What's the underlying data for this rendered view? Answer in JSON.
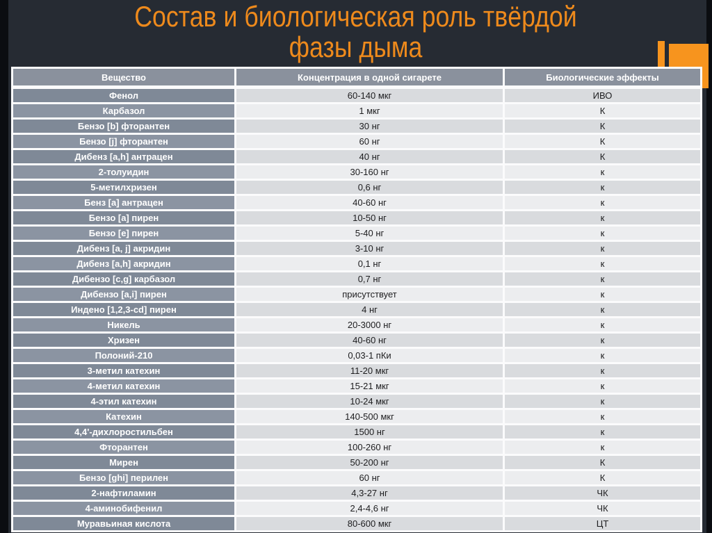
{
  "slide": {
    "title_line1": "Состав и биологическая роль твёрдой",
    "title_line2": "фазы дыма",
    "title_color": "#ee8a1c",
    "accent_color": "#f7941e",
    "background_color": "#262b33"
  },
  "table": {
    "headers": [
      "Вещество",
      "Концентрация в одной сигарете",
      "Биологические эффекты"
    ],
    "rows": [
      [
        "Фенол",
        "60-140 мкг",
        "ИВО"
      ],
      [
        "Карбазол",
        "1 мкг",
        "К"
      ],
      [
        "Бензо [b] фторантен",
        "30 нг",
        "К"
      ],
      [
        "Бензо [j] фторантен",
        "60 нг",
        "К"
      ],
      [
        "Дибенз [a,h] антрацен",
        "40 нг",
        "К"
      ],
      [
        "2-толуидин",
        "30-160 нг",
        "к"
      ],
      [
        "5-метилхризен",
        "0,6 нг",
        "к"
      ],
      [
        "Бенз [a] антрацен",
        "40-60 нг",
        "к"
      ],
      [
        "Бензо [a] пирен",
        "10-50 нг",
        "к"
      ],
      [
        "Бензо [e] пирен",
        "5-40 нг",
        "к"
      ],
      [
        "Дибенз [a, j] акридин",
        "3-10 нг",
        "к"
      ],
      [
        "Дибенз [a,h] акридин",
        "0,1 нг",
        "к"
      ],
      [
        "Дибензо [c,g] карбазол",
        "0,7 нг",
        "к"
      ],
      [
        "Дибензо [a,i] пирен",
        "присутствует",
        "к"
      ],
      [
        "Индено [1,2,3-cd] пирен",
        "4 нг",
        "к"
      ],
      [
        "Никель",
        "20-3000 нг",
        "к"
      ],
      [
        "Хризен",
        "40-60 нг",
        "к"
      ],
      [
        "Полоний-210",
        "0,03-1 пКи",
        "к"
      ],
      [
        "3-метил катехин",
        "11-20 мкг",
        "к"
      ],
      [
        "4-метил катехин",
        "15-21 мкг",
        "к"
      ],
      [
        "4-этил катехин",
        "10-24 мкг",
        "к"
      ],
      [
        "Катехин",
        "140-500 мкг",
        "к"
      ],
      [
        "4,4'-дихлоростильбен",
        "1500 нг",
        "к"
      ],
      [
        "Фторантен",
        "100-260 нг",
        "к"
      ],
      [
        "Мирен",
        "50-200 нг",
        "К"
      ],
      [
        "Бензо [ghi] перилен",
        "60 нг",
        "К"
      ],
      [
        "2-нафтиламин",
        "4,3-27 нг",
        "ЧК"
      ],
      [
        "4-аминобифенил",
        "2,4-4,6 нг",
        "ЧК"
      ],
      [
        "Муравьиная кислота",
        "80-600 мкг",
        "ЦТ"
      ]
    ]
  }
}
